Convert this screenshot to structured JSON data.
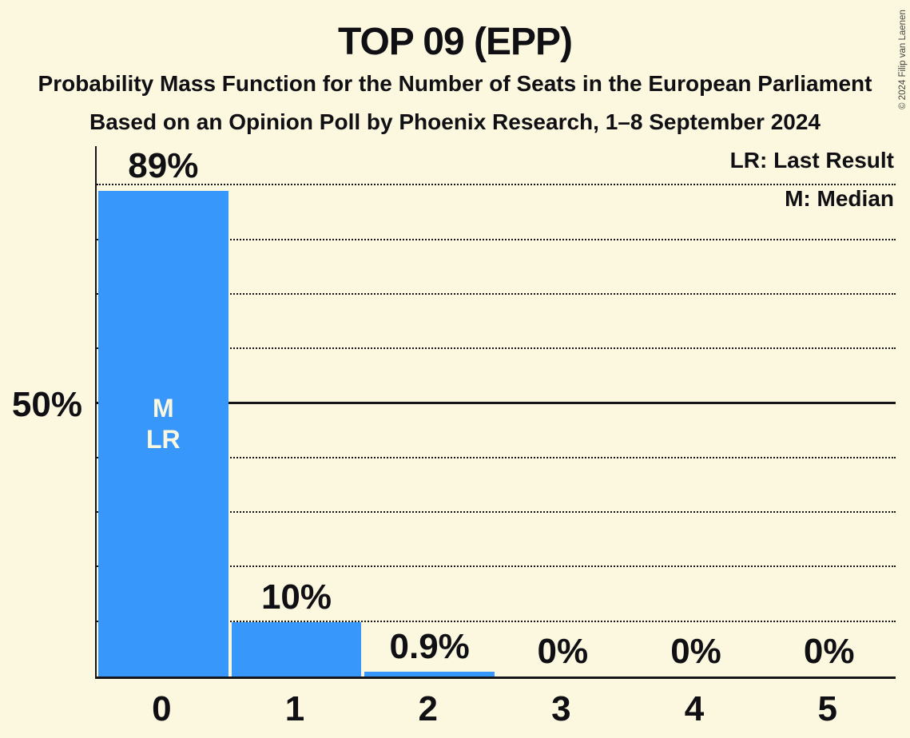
{
  "header": {
    "title": "TOP 09 (EPP)",
    "subtitle": "Probability Mass Function for the Number of Seats in the European Parliament",
    "source_line": "Based on an Opinion Poll by Phoenix Research, 1–8 September 2024"
  },
  "legend": {
    "last_result": "LR: Last Result",
    "median": "M: Median"
  },
  "y_axis": {
    "tick_label": "50%"
  },
  "copyright": "© 2024 Filip van Laenen",
  "colors": {
    "background": "#FCF8DF",
    "bar": "#3897FA",
    "text": "#0F0F14",
    "bar_annotation_text": "#FCF8DF"
  },
  "chart_data": {
    "type": "bar",
    "title": "TOP 09 (EPP)",
    "categories": [
      "0",
      "1",
      "2",
      "3",
      "4",
      "5"
    ],
    "values": [
      89,
      10,
      0.9,
      0,
      0,
      0
    ],
    "value_labels": [
      "89%",
      "10%",
      "0.9%",
      "0%",
      "0%",
      "0%"
    ],
    "bar_annotations": {
      "0": [
        "M",
        "LR"
      ]
    },
    "median_category": "0",
    "last_result_category": "0",
    "ylim": [
      0,
      97
    ],
    "gridlines_percent": [
      10,
      20,
      30,
      40,
      50,
      60,
      70,
      80,
      90
    ],
    "solid_gridline_percent": 50,
    "y_tick_labels": {
      "50": "50%"
    },
    "grid_style": "dotted",
    "legend_position": "top-right"
  }
}
